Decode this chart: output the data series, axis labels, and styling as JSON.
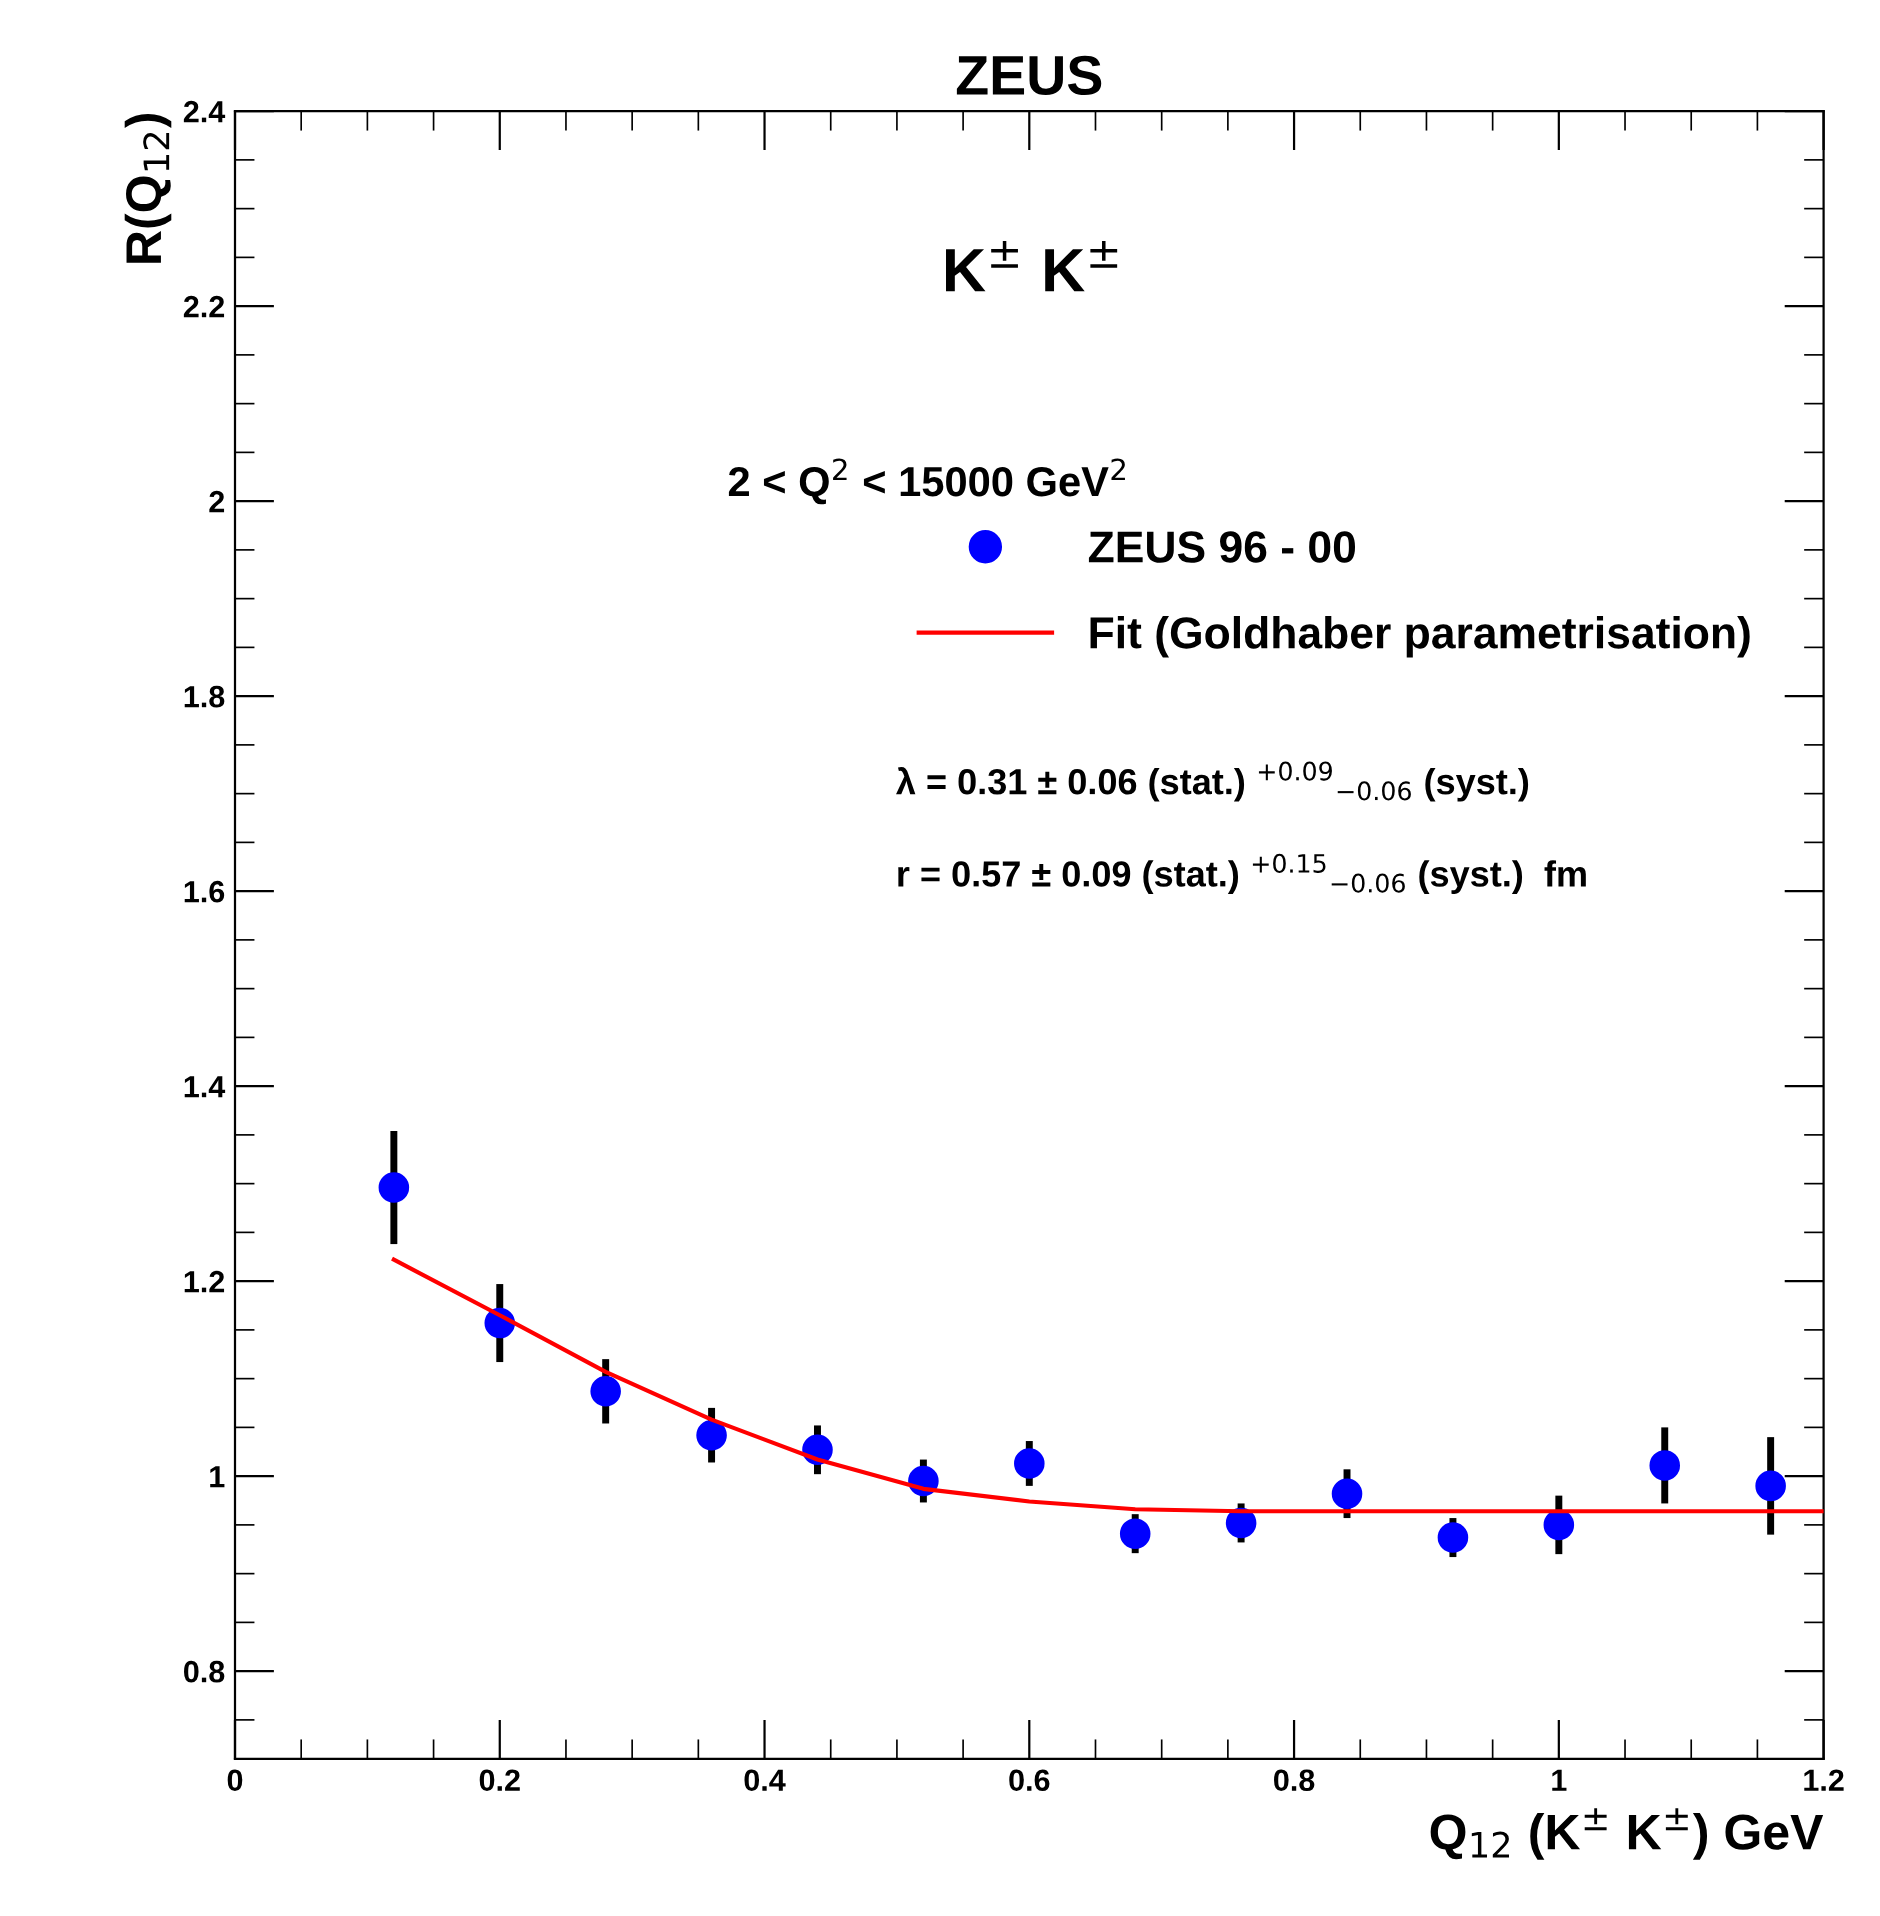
{
  "chart_data": {
    "type": "scatter",
    "title": "ZEUS",
    "xlabel": "Q$_{12}$ (K$^{±}$ K$^{±}$) GeV",
    "ylabel": "R(Q$_{12}$)",
    "annotations": [
      "K$^{±}$ K$^{±}$",
      "2 < Q$^{2}$ < 15000 GeV$^{2}$",
      "λ = 0.31 ± 0.06 (stat.) $^{+0.09}$$_{−0.06}$ (syst.)",
      "r = 0.57 ± 0.09 (stat.) $^{+0.15}$$_{−0.06}$ (syst.)  fm"
    ],
    "xlim": [
      0,
      1.2
    ],
    "xticks": [
      0,
      0.2,
      0.4,
      0.6,
      0.8,
      1,
      1.2
    ],
    "ylim": [
      0.71,
      2.4
    ],
    "yticks": [
      0.8,
      1,
      1.2,
      1.4,
      1.6,
      1.8,
      2,
      2.2,
      2.4
    ],
    "grid": false,
    "legend": "top right",
    "marker": "circle",
    "series": [
      {
        "name": "ZEUS 96 - 00",
        "color": "#0000ff",
        "x": [
          0.12,
          0.2,
          0.28,
          0.36,
          0.44,
          0.52,
          0.6,
          0.68,
          0.76,
          0.84,
          0.92,
          1.0,
          1.08,
          1.16
        ],
        "values": [
          1.296,
          1.157,
          1.087,
          1.042,
          1.027,
          0.995,
          1.013,
          0.941,
          0.952,
          0.982,
          0.937,
          0.95,
          1.011,
          0.99
        ],
        "errors": [
          0.058,
          0.04,
          0.033,
          0.028,
          0.025,
          0.022,
          0.023,
          0.02,
          0.02,
          0.025,
          0.02,
          0.03,
          0.039,
          0.05
        ]
      },
      {
        "name": "Fit (Goldhaber parametrisation)",
        "type": "line",
        "color": "#ff0000",
        "line_style": "solid",
        "marker": "none",
        "x": [
          0.12,
          0.2,
          0.28,
          0.36,
          0.44,
          0.52,
          0.6,
          0.68,
          0.76,
          0.9,
          1.05,
          1.2
        ],
        "values": [
          1.222,
          1.165,
          1.107,
          1.058,
          1.017,
          0.987,
          0.974,
          0.966,
          0.964,
          0.964,
          0.964,
          0.964
        ]
      }
    ]
  }
}
